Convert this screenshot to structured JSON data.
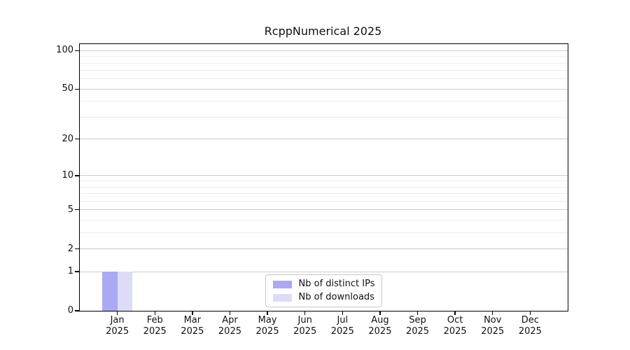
{
  "chart_data": {
    "type": "bar",
    "title": "RcppNumerical 2025",
    "categories": [
      "Jan",
      "Feb",
      "Mar",
      "Apr",
      "May",
      "Jun",
      "Jul",
      "Aug",
      "Sep",
      "Oct",
      "Nov",
      "Dec"
    ],
    "category_year": "2025",
    "series": [
      {
        "name": "Nb of distinct IPs",
        "color": "#a9a9f5",
        "values": [
          1,
          0,
          0,
          0,
          0,
          0,
          0,
          0,
          0,
          0,
          0,
          0
        ]
      },
      {
        "name": "Nb of downloads",
        "color": "#dcdcf8",
        "values": [
          1,
          0,
          0,
          0,
          0,
          0,
          0,
          0,
          0,
          0,
          0,
          0
        ]
      }
    ],
    "yscale": "log1p",
    "ylim": [
      0,
      112
    ],
    "y_major_ticks": [
      0,
      1,
      2,
      5,
      10,
      20,
      50,
      100
    ],
    "y_tick_labels": [
      "0",
      "1",
      "2",
      "5",
      "10",
      "20",
      "50",
      "100"
    ],
    "y_minor_gridlines": [
      3,
      4,
      6,
      7,
      8,
      9,
      30,
      40,
      60,
      70,
      80,
      90
    ],
    "grid": "horizontal",
    "legend_position": "lower center",
    "colors": {
      "major_grid": "#cccccc",
      "minor_grid": "#ececec",
      "spine": "#000000",
      "background": "#ffffff"
    }
  }
}
